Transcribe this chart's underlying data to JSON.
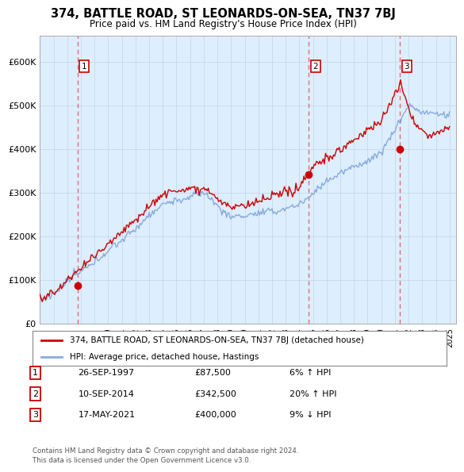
{
  "title": "374, BATTLE ROAD, ST LEONARDS-ON-SEA, TN37 7BJ",
  "subtitle": "Price paid vs. HM Land Registry's House Price Index (HPI)",
  "ylabel_ticks": [
    "£0",
    "£100K",
    "£200K",
    "£300K",
    "£400K",
    "£500K",
    "£600K"
  ],
  "ytick_values": [
    0,
    100000,
    200000,
    300000,
    400000,
    500000,
    600000
  ],
  "ylim": [
    0,
    660000
  ],
  "xlim_start": 1995.0,
  "xlim_end": 2025.5,
  "sale_color": "#cc0000",
  "hpi_color": "#88aadd",
  "vline_color": "#e06060",
  "marker_color": "#cc0000",
  "grid_color": "#c8d8e8",
  "bg_color": "#ffffff",
  "plot_bg_color": "#ddeeff",
  "sales": [
    {
      "label": "1",
      "date_x": 1997.74,
      "price": 87500
    },
    {
      "label": "2",
      "date_x": 2014.69,
      "price": 342500
    },
    {
      "label": "3",
      "date_x": 2021.38,
      "price": 400000
    }
  ],
  "legend_line1": "374, BATTLE ROAD, ST LEONARDS-ON-SEA, TN37 7BJ (detached house)",
  "legend_line2": "HPI: Average price, detached house, Hastings",
  "table_rows": [
    {
      "num": "1",
      "date": "26-SEP-1997",
      "price": "£87,500",
      "hpi": "6% ↑ HPI"
    },
    {
      "num": "2",
      "date": "10-SEP-2014",
      "price": "£342,500",
      "hpi": "20% ↑ HPI"
    },
    {
      "num": "3",
      "date": "17-MAY-2021",
      "price": "£400,000",
      "hpi": "9% ↓ HPI"
    }
  ],
  "footer": "Contains HM Land Registry data © Crown copyright and database right 2024.\nThis data is licensed under the Open Government Licence v3.0.",
  "xtick_years": [
    1995,
    1996,
    1997,
    1998,
    1999,
    2000,
    2001,
    2002,
    2003,
    2004,
    2005,
    2006,
    2007,
    2008,
    2009,
    2010,
    2011,
    2012,
    2013,
    2014,
    2015,
    2016,
    2017,
    2018,
    2019,
    2020,
    2021,
    2022,
    2023,
    2024,
    2025
  ]
}
